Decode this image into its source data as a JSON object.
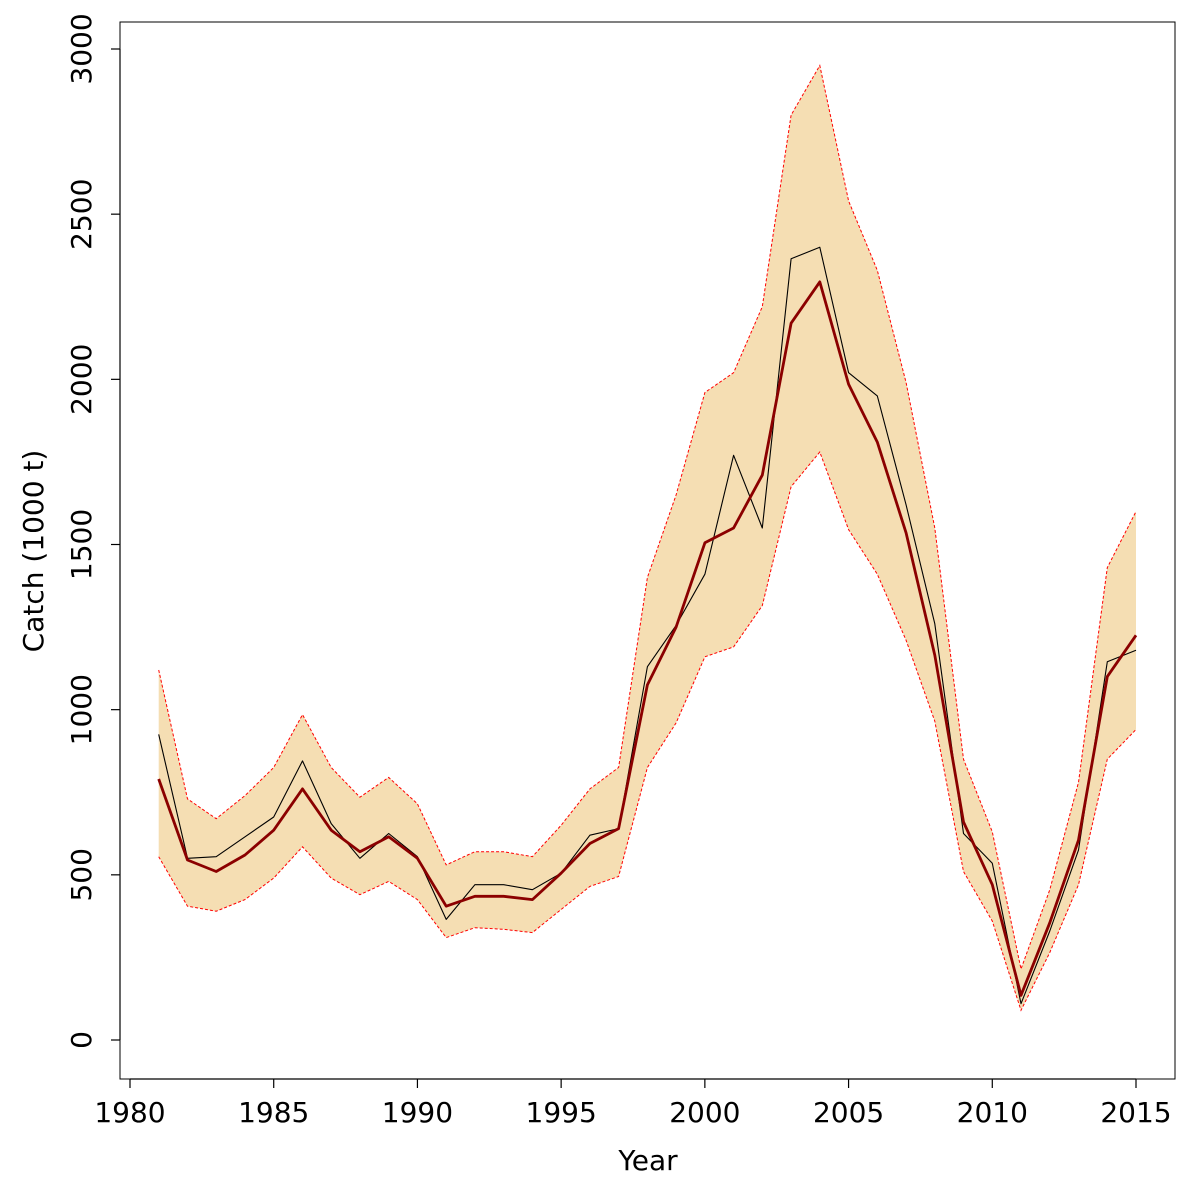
{
  "chart_data": {
    "type": "area",
    "title": "",
    "xlabel": "Year",
    "ylabel": "Catch (1000 t)",
    "xlim": [
      1980,
      2015
    ],
    "ylim": [
      0,
      3000
    ],
    "x_ticks": [
      1980,
      1985,
      1990,
      1995,
      2000,
      2005,
      2010,
      2015
    ],
    "y_ticks": [
      0,
      500,
      1000,
      1500,
      2000,
      2500,
      3000
    ],
    "grid": false,
    "x": [
      1981,
      1982,
      1983,
      1984,
      1985,
      1986,
      1987,
      1988,
      1989,
      1990,
      1991,
      1992,
      1993,
      1994,
      1995,
      1996,
      1997,
      1998,
      1999,
      2000,
      2001,
      2002,
      2003,
      2004,
      2005,
      2006,
      2007,
      2008,
      2009,
      2010,
      2011,
      2012,
      2013,
      2014,
      2015
    ],
    "band": {
      "fill_color": "#F5DEB3",
      "edge_color": "#FF0000",
      "lower": [
        555,
        405,
        390,
        425,
        490,
        585,
        490,
        440,
        480,
        425,
        310,
        340,
        335,
        325,
        395,
        465,
        495,
        825,
        960,
        1160,
        1190,
        1315,
        1675,
        1780,
        1545,
        1410,
        1210,
        965,
        510,
        360,
        90,
        265,
        470,
        850,
        940
      ],
      "upper": [
        1120,
        730,
        670,
        740,
        825,
        985,
        825,
        735,
        795,
        715,
        530,
        570,
        570,
        555,
        650,
        760,
        825,
        1400,
        1650,
        1960,
        2020,
        2220,
        2800,
        2950,
        2540,
        2330,
        1990,
        1550,
        850,
        630,
        215,
        455,
        780,
        1430,
        1600
      ]
    },
    "series": [
      {
        "color": "#8B0000",
        "values": [
          790,
          545,
          510,
          560,
          635,
          760,
          635,
          570,
          615,
          550,
          405,
          435,
          435,
          425,
          505,
          595,
          640,
          1075,
          1250,
          1505,
          1550,
          1710,
          2170,
          2295,
          1985,
          1810,
          1535,
          1165,
          660,
          470,
          135,
          355,
          605,
          1100,
          1225
        ]
      },
      {
        "color": "#000000",
        "values": [
          925,
          550,
          555,
          615,
          675,
          845,
          655,
          550,
          625,
          555,
          365,
          470,
          470,
          455,
          505,
          620,
          640,
          1130,
          1255,
          1410,
          1770,
          1550,
          2365,
          2400,
          2020,
          1950,
          1620,
          1260,
          625,
          535,
          110,
          330,
          575,
          1145,
          1180
        ]
      }
    ]
  }
}
